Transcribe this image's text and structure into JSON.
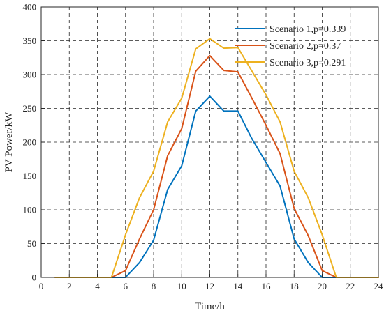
{
  "chart_data": {
    "type": "line",
    "xlabel": "Time/h",
    "ylabel": "PV Power/kW",
    "xlim": [
      0,
      24
    ],
    "ylim": [
      0,
      400
    ],
    "xticks": [
      0,
      2,
      4,
      6,
      8,
      10,
      12,
      14,
      16,
      18,
      20,
      22,
      24
    ],
    "yticks": [
      0,
      50,
      100,
      150,
      200,
      250,
      300,
      350,
      400
    ],
    "grid": true,
    "grid_style": "dashed",
    "legend_position": "top-right",
    "x": [
      1,
      2,
      3,
      4,
      5,
      6,
      7,
      8,
      9,
      10,
      11,
      12,
      13,
      14,
      15,
      16,
      17,
      18,
      19,
      20,
      21,
      22,
      23,
      24
    ],
    "series": [
      {
        "name": "Scenario 1,p=0.339",
        "color": "#0072BD",
        "values": [
          0,
          0,
          0,
          0,
          0,
          0,
          22,
          55,
          130,
          165,
          246,
          268,
          246,
          246,
          205,
          170,
          135,
          57,
          22,
          0,
          0,
          0,
          0,
          0
        ]
      },
      {
        "name": "Scenario 2,p=0.37",
        "color": "#D95319",
        "values": [
          0,
          0,
          0,
          0,
          0,
          10,
          57,
          100,
          180,
          220,
          305,
          328,
          306,
          304,
          265,
          225,
          183,
          102,
          62,
          10,
          0,
          0,
          0,
          0
        ]
      },
      {
        "name": "Scenario 3,p=0.291",
        "color": "#EDB120",
        "values": [
          0,
          0,
          0,
          0,
          0,
          63,
          118,
          157,
          230,
          265,
          338,
          353,
          339,
          340,
          305,
          270,
          230,
          157,
          118,
          63,
          0,
          0,
          0,
          0
        ]
      }
    ]
  }
}
